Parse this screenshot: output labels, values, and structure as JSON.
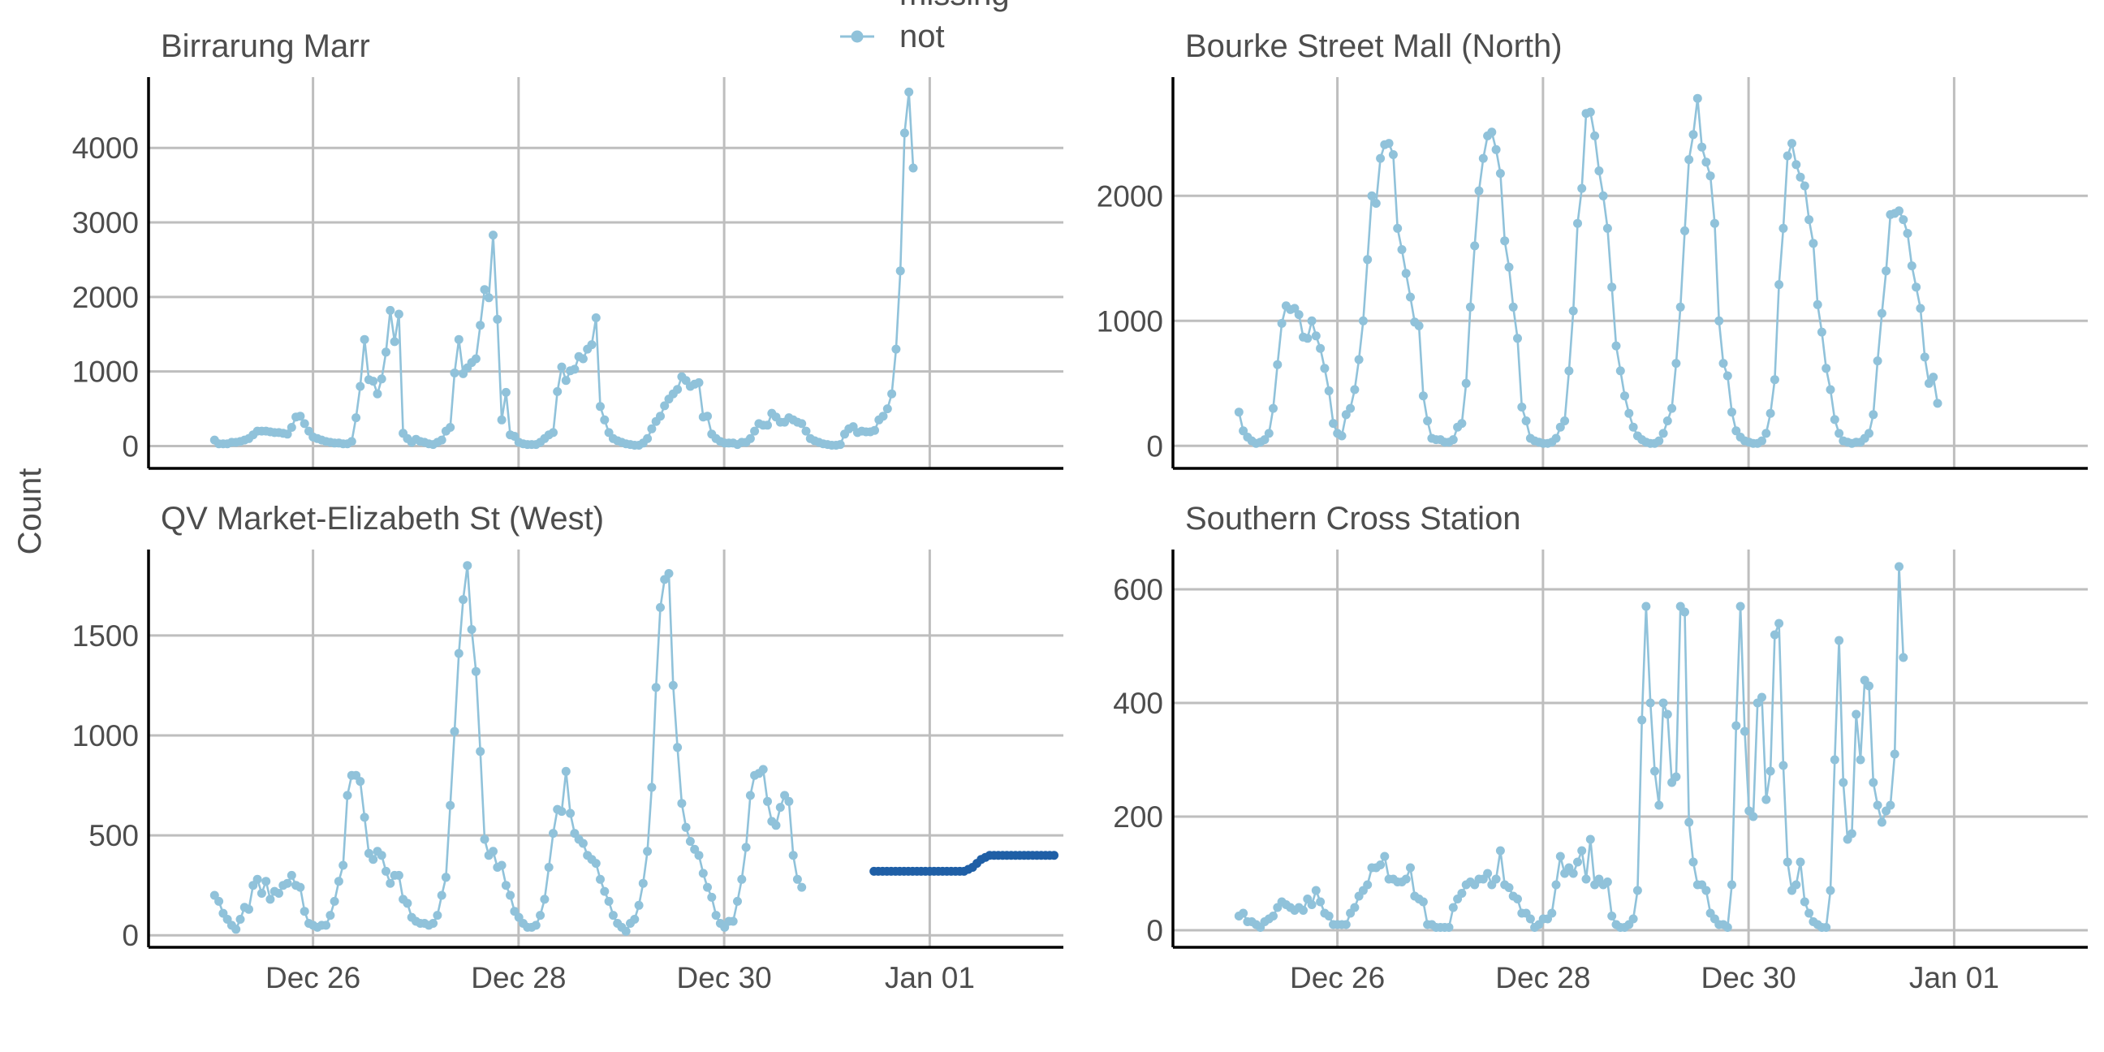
{
  "chart_data": {
    "type": "line",
    "ylabel": "Count",
    "legend": {
      "position": "top",
      "entries": [
        {
          "label": "missing",
          "color": "#1f5fa6"
        },
        {
          "label": "not",
          "color": "#90c2da"
        }
      ]
    },
    "x_ticks": [
      "Dec 26",
      "Dec 28",
      "Dec 30",
      "Jan 01"
    ],
    "x_range_days": [
      -1.6,
      7.3
    ],
    "grid": true,
    "panels": [
      {
        "title": "Birrarung Marr",
        "ylim": [
          -300,
          4950
        ],
        "y_ticks": [
          0,
          1000,
          2000,
          3000,
          4000
        ],
        "series": [
          {
            "name": "not",
            "start": -0.958,
            "step": 0.0417,
            "values": [
              80,
              30,
              30,
              30,
              50,
              50,
              60,
              80,
              100,
              150,
              200,
              200,
              200,
              190,
              180,
              180,
              170,
              160,
              250,
              390,
              400,
              300,
              200,
              120,
              100,
              80,
              60,
              50,
              40,
              40,
              30,
              30,
              60,
              380,
              800,
              1430,
              890,
              870,
              700,
              900,
              1260,
              1820,
              1400,
              1770,
              170,
              100,
              50,
              90,
              60,
              50,
              30,
              20,
              50,
              80,
              200,
              250,
              980,
              1430,
              970,
              1050,
              1120,
              1170,
              1620,
              2100,
              1990,
              2830,
              1700,
              350,
              720,
              150,
              130,
              50,
              30,
              20,
              20,
              20,
              50,
              100,
              150,
              180,
              730,
              1060,
              880,
              1010,
              1030,
              1200,
              1170,
              1300,
              1360,
              1720,
              530,
              350,
              180,
              100,
              70,
              50,
              30,
              20,
              10,
              10,
              40,
              100,
              230,
              330,
              400,
              540,
              630,
              700,
              760,
              930,
              880,
              800,
              830,
              850,
              390,
              400,
              160,
              100,
              60,
              40,
              40,
              40,
              20,
              50,
              50,
              100,
              200,
              300,
              280,
              280,
              440,
              390,
              320,
              320,
              380,
              350,
              320,
              300,
              200,
              100,
              70,
              50,
              30,
              20,
              10,
              10,
              20,
              160,
              230,
              260,
              180,
              200,
              190,
              190,
              210,
              350,
              400,
              500,
              700,
              1300,
              2350,
              4200,
              4750,
              3730
            ]
          }
        ]
      },
      {
        "title": "Bourke Street Mall (North)",
        "ylim": [
          -180,
          2950
        ],
        "y_ticks": [
          0,
          1000,
          2000
        ],
        "series": [
          {
            "name": "not",
            "start": -0.958,
            "step": 0.0417,
            "values": [
              270,
              120,
              70,
              40,
              20,
              30,
              50,
              100,
              300,
              650,
              980,
              1120,
              1090,
              1100,
              1050,
              870,
              860,
              1000,
              880,
              780,
              620,
              440,
              180,
              100,
              80,
              250,
              300,
              450,
              690,
              1000,
              1490,
              2000,
              1940,
              2300,
              2410,
              2420,
              2330,
              1740,
              1570,
              1380,
              1190,
              990,
              960,
              400,
              200,
              60,
              50,
              50,
              30,
              30,
              50,
              150,
              180,
              500,
              1110,
              1600,
              2040,
              2300,
              2480,
              2510,
              2370,
              2180,
              1640,
              1430,
              1110,
              860,
              310,
              200,
              60,
              40,
              30,
              20,
              20,
              30,
              60,
              150,
              200,
              600,
              1080,
              1780,
              2060,
              2660,
              2670,
              2480,
              2200,
              2000,
              1740,
              1270,
              800,
              600,
              400,
              260,
              150,
              80,
              50,
              30,
              20,
              20,
              40,
              100,
              200,
              300,
              660,
              1110,
              1720,
              2290,
              2490,
              2780,
              2390,
              2270,
              2160,
              1780,
              1000,
              660,
              560,
              270,
              120,
              70,
              40,
              30,
              20,
              20,
              40,
              100,
              260,
              530,
              1290,
              1740,
              2320,
              2420,
              2250,
              2150,
              2080,
              1810,
              1620,
              1130,
              910,
              620,
              450,
              210,
              100,
              40,
              30,
              20,
              30,
              30,
              60,
              100,
              250,
              680,
              1060,
              1400,
              1850,
              1860,
              1880,
              1810,
              1700,
              1440,
              1270,
              1100,
              710,
              500,
              550,
              340
            ]
          }
        ]
      },
      {
        "title": "QV Market-Elizabeth St (West)",
        "ylim": [
          -60,
          1930
        ],
        "y_ticks": [
          0,
          500,
          1000,
          1500
        ],
        "series": [
          {
            "name": "not",
            "start": -0.958,
            "step": 0.0417,
            "values": [
              200,
              170,
              110,
              80,
              50,
              30,
              80,
              140,
              130,
              250,
              280,
              210,
              270,
              180,
              220,
              210,
              250,
              260,
              300,
              250,
              240,
              120,
              60,
              50,
              40,
              50,
              50,
              100,
              170,
              270,
              350,
              700,
              800,
              800,
              770,
              590,
              410,
              380,
              420,
              400,
              320,
              260,
              300,
              300,
              180,
              160,
              90,
              70,
              60,
              60,
              50,
              60,
              100,
              200,
              290,
              650,
              1020,
              1410,
              1680,
              1850,
              1530,
              1320,
              920,
              480,
              400,
              420,
              340,
              350,
              250,
              200,
              120,
              90,
              60,
              40,
              40,
              50,
              100,
              180,
              340,
              510,
              630,
              620,
              820,
              610,
              510,
              480,
              460,
              400,
              380,
              360,
              280,
              220,
              170,
              100,
              60,
              40,
              20,
              60,
              80,
              150,
              260,
              420,
              740,
              1240,
              1640,
              1780,
              1810,
              1250,
              940,
              660,
              540,
              470,
              430,
              400,
              310,
              240,
              190,
              100,
              60,
              40,
              70,
              70,
              170,
              280,
              440,
              700,
              800,
              810,
              830,
              670,
              570,
              550,
              640,
              700,
              670,
              400,
              280,
              240
            ]
          },
          {
            "name": "missing",
            "start": 5.458,
            "step": 0.0417,
            "values": [
              320,
              320,
              320,
              320,
              320,
              320,
              320,
              320,
              320,
              320,
              320,
              320,
              320,
              320,
              320,
              320,
              320,
              320,
              320,
              320,
              320,
              320,
              330,
              340,
              360,
              380,
              390,
              400,
              400,
              400,
              400,
              400,
              400,
              400,
              400,
              400,
              400,
              400,
              400,
              400,
              400,
              400,
              400
            ]
          }
        ]
      },
      {
        "title": "Southern Cross Station",
        "ylim": [
          -30,
          670
        ],
        "y_ticks": [
          0,
          200,
          400,
          600
        ],
        "series": [
          {
            "name": "not",
            "start": -0.958,
            "step": 0.0417,
            "values": [
              25,
              30,
              15,
              15,
              10,
              5,
              15,
              20,
              25,
              40,
              50,
              45,
              40,
              35,
              40,
              35,
              55,
              45,
              70,
              50,
              30,
              25,
              10,
              10,
              10,
              10,
              30,
              40,
              60,
              70,
              80,
              110,
              110,
              115,
              130,
              90,
              90,
              85,
              85,
              90,
              110,
              60,
              55,
              50,
              10,
              10,
              5,
              5,
              5,
              5,
              40,
              55,
              65,
              80,
              85,
              80,
              90,
              90,
              100,
              80,
              90,
              140,
              80,
              75,
              60,
              55,
              30,
              30,
              20,
              5,
              10,
              20,
              20,
              30,
              80,
              130,
              100,
              110,
              100,
              120,
              140,
              90,
              160,
              80,
              90,
              80,
              85,
              25,
              10,
              5,
              5,
              10,
              20,
              70,
              370,
              570,
              400,
              280,
              220,
              400,
              380,
              260,
              270,
              570,
              560,
              190,
              120,
              80,
              80,
              70,
              30,
              20,
              10,
              10,
              5,
              80,
              360,
              570,
              350,
              210,
              200,
              400,
              410,
              230,
              280,
              520,
              540,
              290,
              120,
              70,
              80,
              120,
              50,
              30,
              15,
              10,
              5,
              5,
              70,
              300,
              510,
              260,
              160,
              170,
              380,
              300,
              440,
              430,
              260,
              220,
              190,
              210,
              220,
              310,
              640,
              480
            ]
          }
        ]
      }
    ]
  }
}
